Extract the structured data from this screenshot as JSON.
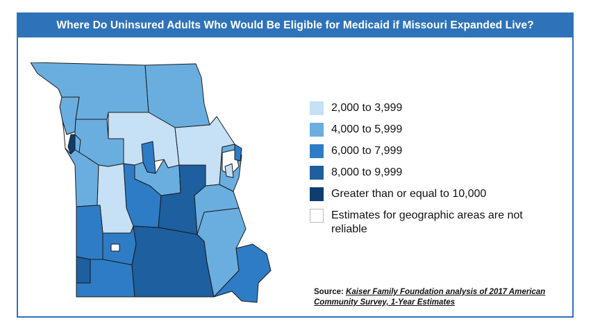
{
  "title": "Where Do Uninsured Adults Who Would Be Eligible for Medicaid if Missouri Expanded Live?",
  "legend": {
    "items": [
      {
        "label": "2,000 to 3,999",
        "color": "#c6e0f5"
      },
      {
        "label": "4,000 to 5,999",
        "color": "#6aaee0"
      },
      {
        "label": "6,000 to 7,999",
        "color": "#2f7cc6"
      },
      {
        "label": "8,000 to 9,999",
        "color": "#1d5f9f"
      },
      {
        "label": "Greater than or equal to 10,000",
        "color": "#0f3e6e"
      },
      {
        "label": "Estimates for geographic areas are not reliable",
        "color": "#ffffff"
      }
    ]
  },
  "source": {
    "lead": "Source:",
    "citation": "Kaiser Family Foundation analysis of 2017 American Community Survey, 1-Year Estimates"
  },
  "colors": {
    "accent": "#2e73b9",
    "border": "#2e73b9",
    "region_outline": "#1a1a1a"
  }
}
